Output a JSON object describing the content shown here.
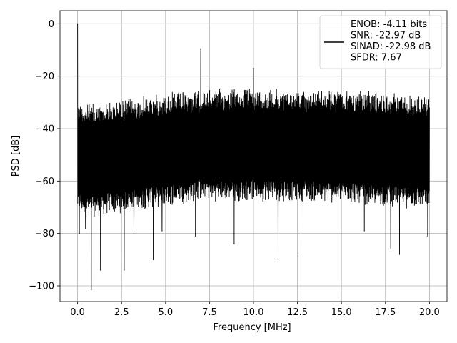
{
  "chart_data": {
    "type": "line",
    "xlabel": "Frequency [MHz]",
    "ylabel": "PSD [dB]",
    "xlim": [
      -1,
      21
    ],
    "ylim": [
      -106,
      5
    ],
    "xticks": [
      0.0,
      2.5,
      5.0,
      7.5,
      10.0,
      12.5,
      15.0,
      17.5,
      20.0
    ],
    "xtick_labels": [
      "0.0",
      "2.5",
      "5.0",
      "7.5",
      "10.0",
      "12.5",
      "15.0",
      "17.5",
      "20.0"
    ],
    "yticks": [
      0,
      -20,
      -40,
      -60,
      -80,
      -100
    ],
    "ytick_labels": [
      "0",
      "−20",
      "−40",
      "−60",
      "−80",
      "−100"
    ],
    "grid": true,
    "legend_position": "top-right",
    "series": [
      {
        "name": "ENOB: -4.11 bits\nSNR: -22.97 dB\nSINAD: -22.98 dB\nSFDR: 7.67",
        "color": "#000000",
        "noise_envelope": {
          "x": [
            0.0,
            0.5,
            1.0,
            2.0,
            3.0,
            4.0,
            5.0,
            6.0,
            7.0,
            8.0,
            9.0,
            10.0,
            11.0,
            12.0,
            13.0,
            14.0,
            15.0,
            16.0,
            17.0,
            18.0,
            19.0,
            20.0
          ],
          "upper": [
            -29,
            -30,
            -30,
            -29,
            -28,
            -27,
            -26,
            -25.5,
            -25,
            -24.5,
            -24,
            -24,
            -24.5,
            -24.5,
            -25,
            -25,
            -25,
            -25.5,
            -25.5,
            -26,
            -26.5,
            -27
          ],
          "lower": [
            -73,
            -74,
            -74,
            -73,
            -72,
            -71,
            -70,
            -69,
            -68,
            -68,
            -68,
            -68,
            -68,
            -68,
            -68,
            -69,
            -69,
            -69,
            -70,
            -70,
            -71,
            -71
          ]
        },
        "peaks": [
          {
            "x": 0.0,
            "y": 0
          },
          {
            "x": 7.0,
            "y": -9.5
          },
          {
            "x": 10.0,
            "y": -17
          }
        ],
        "dips": [
          {
            "x": 0.1,
            "y": -80
          },
          {
            "x": 0.45,
            "y": -78
          },
          {
            "x": 0.78,
            "y": -101.5
          },
          {
            "x": 1.3,
            "y": -94
          },
          {
            "x": 2.65,
            "y": -94
          },
          {
            "x": 3.2,
            "y": -80
          },
          {
            "x": 4.3,
            "y": -90
          },
          {
            "x": 4.8,
            "y": -79
          },
          {
            "x": 6.7,
            "y": -81
          },
          {
            "x": 8.9,
            "y": -84
          },
          {
            "x": 11.4,
            "y": -90
          },
          {
            "x": 12.7,
            "y": -88
          },
          {
            "x": 16.3,
            "y": -79
          },
          {
            "x": 17.8,
            "y": -86
          },
          {
            "x": 18.3,
            "y": -88
          },
          {
            "x": 19.9,
            "y": -81
          }
        ]
      }
    ]
  }
}
